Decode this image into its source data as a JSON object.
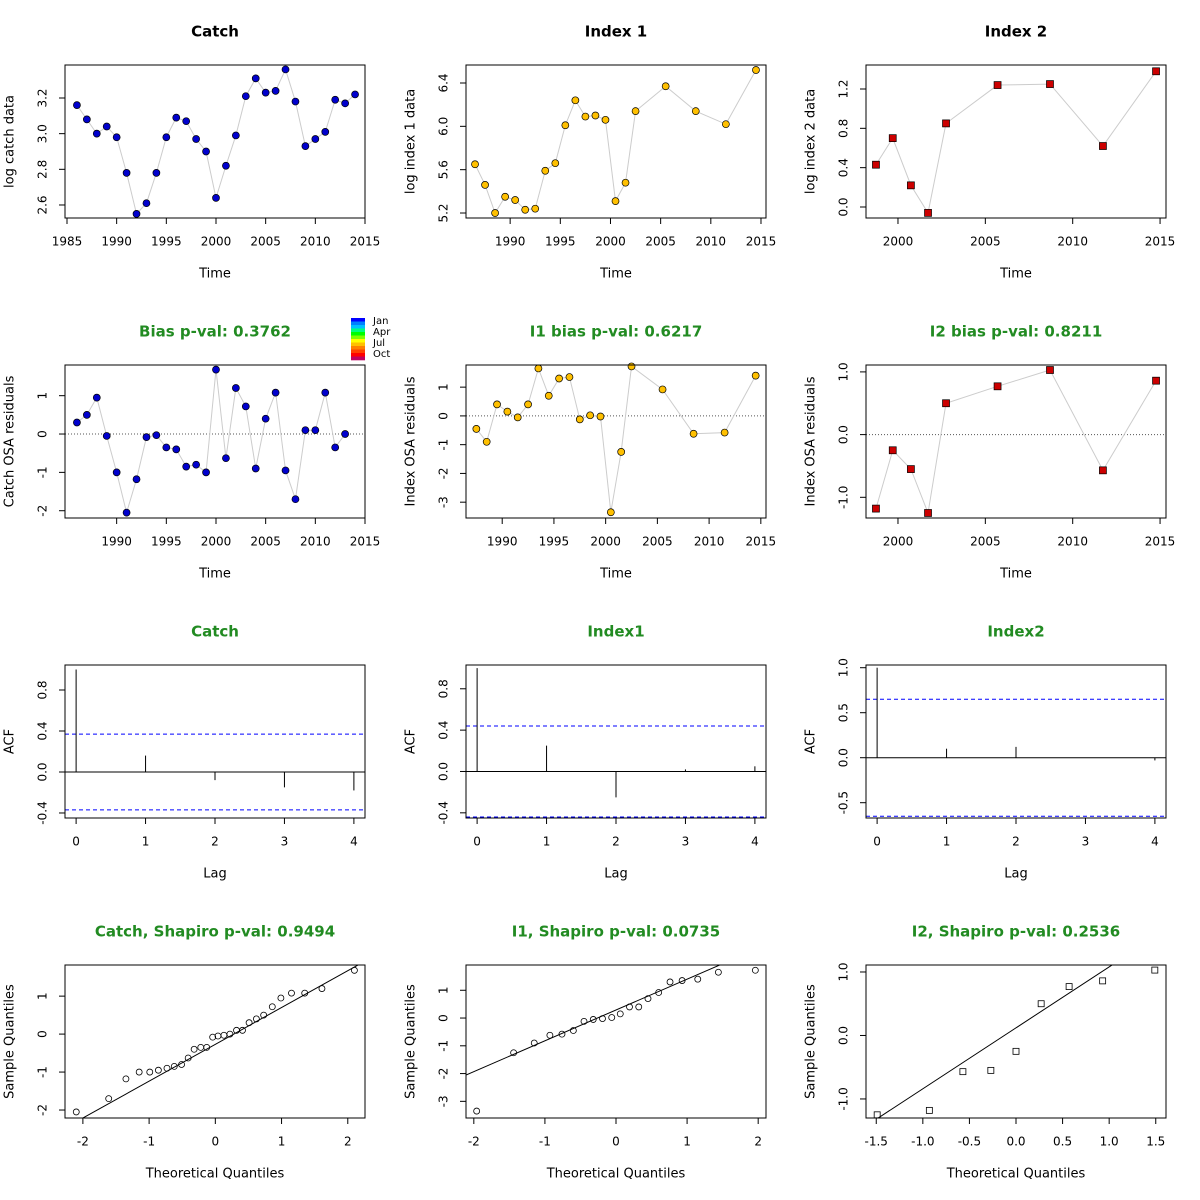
{
  "chart_data": [
    {
      "type": "line",
      "title": "Catch",
      "title_color": "#000000",
      "xlabel": "Time",
      "ylabel": "log catch data",
      "x": [
        1986,
        1987,
        1988,
        1989,
        1990,
        1991,
        1992,
        1993,
        1994,
        1995,
        1996,
        1997,
        1998,
        1999,
        2000,
        2001,
        2002,
        2003,
        2004,
        2005,
        2006,
        2007,
        2008,
        2009,
        2010,
        2011,
        2012,
        2013,
        2014
      ],
      "values": [
        3.16,
        3.08,
        3.0,
        3.04,
        2.98,
        2.78,
        2.55,
        2.61,
        2.78,
        2.98,
        3.09,
        3.07,
        2.97,
        2.9,
        2.64,
        2.82,
        2.99,
        3.21,
        3.31,
        3.23,
        3.24,
        3.36,
        3.18,
        2.93,
        2.97,
        3.01,
        3.19,
        3.17,
        3.22
      ],
      "color": "#0000cd",
      "marker": "circle",
      "xlim": [
        1984.8,
        2015.0
      ],
      "ylim": [
        2.527,
        3.385
      ],
      "xticks": [
        1985,
        1990,
        1995,
        2000,
        2005,
        2010,
        2015
      ],
      "yticks": [
        2.6,
        2.8,
        {
          "value": 3,
          "label": "3.0"
        },
        3.2
      ]
    },
    {
      "type": "line",
      "title": "Index 1",
      "title_color": "#000000",
      "xlabel": "Time",
      "ylabel": "log index 1 data",
      "x": [
        1986.5,
        1987.5,
        1988.5,
        1989.5,
        1990.5,
        1991.5,
        1992.5,
        1993.5,
        1994.5,
        1995.5,
        1996.5,
        1997.5,
        1998.5,
        1999.5,
        2000.5,
        2001.5,
        2002.5,
        2005.5,
        2008.5,
        2011.5,
        2014.5
      ],
      "values": [
        5.65,
        5.46,
        5.2,
        5.35,
        5.32,
        5.23,
        5.24,
        5.59,
        5.66,
        6.01,
        6.24,
        6.09,
        6.1,
        6.06,
        5.31,
        5.48,
        6.14,
        6.37,
        6.14,
        6.02,
        6.52
      ],
      "color": "#ffc000",
      "marker": "circle",
      "xlim": [
        1985.6,
        2015.5
      ],
      "ylim": [
        5.154,
        6.566
      ],
      "xticks": [
        1990,
        1995,
        2000,
        2005,
        2010,
        2015
      ],
      "yticks": [
        5.2,
        5.6,
        {
          "value": 6,
          "label": "6.0"
        },
        6.4
      ]
    },
    {
      "type": "line",
      "title": "Index 2",
      "title_color": "#000000",
      "xlabel": "Time",
      "ylabel": "log index 2 data",
      "x": [
        1998.74,
        1999.7,
        2000.74,
        2001.72,
        2002.75,
        2005.7,
        2008.7,
        2011.73,
        2014.77
      ],
      "values": [
        0.43,
        0.7,
        0.22,
        -0.06,
        0.85,
        1.24,
        1.25,
        0.62,
        1.38
      ],
      "color": "#cc0000",
      "marker": "square",
      "xlim": [
        1998.17,
        2015.34
      ],
      "ylim": [
        -0.112,
        1.444
      ],
      "xticks": [
        2000,
        2005,
        2010,
        2015
      ],
      "yticks": [
        {
          "value": 0,
          "label": "0.0"
        },
        0.4,
        0.8,
        1.2
      ]
    },
    {
      "type": "line",
      "title": "Bias p-val: 0.3762",
      "title_color": "#228b22",
      "xlabel": "Time",
      "ylabel": "Catch OSA residuals",
      "x": [
        1986,
        1987,
        1988,
        1989,
        1990,
        1991,
        1992,
        1993,
        1994,
        1995,
        1996,
        1997,
        1998,
        1999,
        2000,
        2001,
        2002,
        2003,
        2004,
        2005,
        2006,
        2007,
        2008,
        2009,
        2010,
        2011,
        2012,
        2013
      ],
      "values": [
        0.3,
        0.5,
        0.95,
        -0.05,
        -1.0,
        -2.05,
        -1.18,
        -0.08,
        -0.03,
        -0.35,
        -0.4,
        -0.85,
        -0.8,
        -1.0,
        1.68,
        -0.63,
        1.2,
        0.72,
        -0.9,
        0.4,
        1.08,
        -0.95,
        -1.7,
        0.1,
        0.1,
        1.08,
        -0.35,
        0.0
      ],
      "color": "#0000cd",
      "marker": "circle",
      "zero_line": true,
      "xlim": [
        1984.8,
        2015.0
      ],
      "ylim": [
        -2.19,
        1.8
      ],
      "xticks": [
        1990,
        1995,
        2000,
        2005,
        2010,
        2015
      ],
      "yticks": [
        -2,
        -1,
        0,
        1
      ],
      "colorbar": {
        "labels": [
          "Jan",
          "Apr",
          "Jul",
          "Oct"
        ],
        "colors": [
          "#0000ff",
          "#0080ff",
          "#00c0ff",
          "#00ff80",
          "#00ff00",
          "#80ff00",
          "#ffff00",
          "#ffc000",
          "#ff8000",
          "#ff4000",
          "#ff0000",
          "#c00060"
        ]
      }
    },
    {
      "type": "line",
      "title": "I1 bias p-val: 0.6217",
      "title_color": "#228b22",
      "xlabel": "Time",
      "ylabel": "Index OSA residuals",
      "x": [
        1987.5,
        1988.5,
        1989.5,
        1990.5,
        1991.5,
        1992.5,
        1993.5,
        1994.5,
        1995.5,
        1996.5,
        1997.5,
        1998.5,
        1999.5,
        2000.5,
        2001.5,
        2002.5,
        2005.5,
        2008.5,
        2011.5,
        2014.5
      ],
      "values": [
        -0.45,
        -0.9,
        0.4,
        0.15,
        -0.05,
        0.4,
        1.65,
        0.7,
        1.3,
        1.35,
        -0.12,
        0.02,
        -0.02,
        -3.35,
        -1.25,
        1.72,
        0.92,
        -0.62,
        -0.58,
        1.4
      ],
      "color": "#ffc000",
      "marker": "circle",
      "zero_line": true,
      "xlim": [
        1986.5,
        2015.5
      ],
      "ylim": [
        -3.55,
        1.77
      ],
      "xticks": [
        1990,
        1995,
        2000,
        2005,
        2010,
        2015
      ],
      "yticks": [
        -3,
        -2,
        -1,
        0,
        1
      ]
    },
    {
      "type": "line",
      "title": "I2 bias p-val: 0.8211",
      "title_color": "#228b22",
      "xlabel": "Time",
      "ylabel": "Index OSA residuals",
      "x": [
        1998.74,
        1999.7,
        2000.74,
        2001.72,
        2002.75,
        2005.7,
        2008.7,
        2011.73,
        2014.77
      ],
      "values": [
        -1.18,
        -0.25,
        -0.55,
        -1.25,
        0.5,
        0.77,
        1.03,
        -0.57,
        0.86
      ],
      "color": "#cc0000",
      "marker": "square",
      "zero_line": true,
      "xlim": [
        1998.17,
        2015.34
      ],
      "ylim": [
        -1.33,
        1.11
      ],
      "xticks": [
        2000,
        2005,
        2010,
        2015
      ],
      "yticks": [
        {
          "value": -1,
          "label": "-1.0"
        },
        {
          "value": 0,
          "label": "0.0"
        },
        {
          "value": 1,
          "label": "1.0"
        }
      ]
    },
    {
      "type": "bar",
      "title": "Catch",
      "title_color": "#228b22",
      "xlabel": "Lag",
      "ylabel": "ACF",
      "x": [
        0,
        1,
        2,
        3,
        4
      ],
      "values": [
        1.0,
        0.16,
        -0.08,
        -0.15,
        -0.18
      ],
      "ci": 0.37,
      "ci_color": "#0000ff",
      "xlim": [
        -0.16,
        4.16
      ],
      "ylim": [
        -0.449,
        1.044
      ],
      "xticks": [
        0,
        1,
        2,
        3,
        4
      ],
      "yticks": [
        -0.4,
        {
          "value": 0,
          "label": "0.0"
        },
        0.4,
        0.8
      ]
    },
    {
      "type": "bar",
      "title": "Index1",
      "title_color": "#228b22",
      "xlabel": "Lag",
      "ylabel": "ACF",
      "x": [
        0,
        1,
        2,
        3,
        4
      ],
      "values": [
        1.0,
        0.25,
        -0.25,
        0.02,
        0.05
      ],
      "ci": 0.44,
      "ci_color": "#0000ff",
      "xlim": [
        -0.16,
        4.16
      ],
      "ylim": [
        -0.45,
        1.03
      ],
      "xticks": [
        0,
        1,
        2,
        3,
        4
      ],
      "yticks": [
        -0.4,
        {
          "value": 0,
          "label": "0.0"
        },
        0.4,
        0.8
      ]
    },
    {
      "type": "bar",
      "title": "Index2",
      "title_color": "#228b22",
      "xlabel": "Lag",
      "ylabel": "ACF",
      "x": [
        0,
        1,
        2,
        3,
        4
      ],
      "values": [
        1.0,
        0.1,
        0.12,
        0.0,
        -0.03
      ],
      "ci": 0.65,
      "ci_color": "#0000ff",
      "xlim": [
        -0.16,
        4.16
      ],
      "ylim": [
        -0.67,
        1.03
      ],
      "xticks": [
        0,
        1,
        2,
        3,
        4
      ],
      "yticks": [
        -0.5,
        {
          "value": 0,
          "label": "0.0"
        },
        0.5,
        {
          "value": 1,
          "label": "1.0"
        }
      ]
    },
    {
      "type": "scatter",
      "title": "Catch, Shapiro p-val: 0.9494",
      "title_color": "#228b22",
      "xlabel": "Theoretical Quantiles",
      "ylabel": "Sample Quantiles",
      "x": [
        -2.1,
        -1.61,
        -1.35,
        -1.15,
        -0.99,
        -0.86,
        -0.73,
        -0.62,
        -0.51,
        -0.41,
        -0.32,
        -0.22,
        -0.13,
        -0.04,
        0.04,
        0.13,
        0.22,
        0.32,
        0.41,
        0.51,
        0.62,
        0.73,
        0.86,
        0.99,
        1.15,
        1.35,
        1.61,
        2.1
      ],
      "values": [
        -2.05,
        -1.7,
        -1.18,
        -1.0,
        -1.0,
        -0.95,
        -0.9,
        -0.85,
        -0.8,
        -0.63,
        -0.4,
        -0.35,
        -0.35,
        -0.08,
        -0.05,
        -0.03,
        0.0,
        0.1,
        0.1,
        0.3,
        0.4,
        0.5,
        0.72,
        0.95,
        1.08,
        1.08,
        1.2,
        1.68
      ],
      "marker": "circle",
      "line": {
        "intercept": -0.27,
        "slope": 0.97
      },
      "xlim": [
        -2.27,
        2.26
      ],
      "ylim": [
        -2.21,
        1.82
      ],
      "xticks": [
        -2,
        -1,
        0,
        1,
        2
      ],
      "yticks": [
        -2,
        -1,
        0,
        1
      ]
    },
    {
      "type": "scatter",
      "title": "I1, Shapiro p-val: 0.0735",
      "title_color": "#228b22",
      "xlabel": "Theoretical Quantiles",
      "ylabel": "Sample Quantiles",
      "x": [
        -1.96,
        -1.44,
        -1.15,
        -0.93,
        -0.76,
        -0.6,
        -0.45,
        -0.32,
        -0.19,
        -0.06,
        0.06,
        0.19,
        0.32,
        0.45,
        0.6,
        0.76,
        0.93,
        1.15,
        1.44,
        1.96
      ],
      "values": [
        -3.35,
        -1.25,
        -0.9,
        -0.62,
        -0.58,
        -0.45,
        -0.12,
        -0.05,
        -0.02,
        0.02,
        0.15,
        0.4,
        0.4,
        0.7,
        0.92,
        1.3,
        1.35,
        1.4,
        1.65,
        1.72
      ],
      "marker": "circle",
      "line": {
        "intercept": 0.29,
        "slope": 1.11
      },
      "xlim": [
        -2.11,
        2.11
      ],
      "ylim": [
        -3.6,
        1.91
      ],
      "xticks": [
        -2,
        -1,
        0,
        1,
        2
      ],
      "yticks": [
        -3,
        -2,
        -1,
        0,
        1
      ]
    },
    {
      "type": "scatter",
      "title": "I2, Shapiro p-val: 0.2536",
      "title_color": "#228b22",
      "xlabel": "Theoretical Quantiles",
      "ylabel": "Sample Quantiles",
      "x": [
        -1.49,
        -0.93,
        -0.57,
        -0.27,
        0,
        0.27,
        0.57,
        0.93,
        1.49
      ],
      "values": [
        -1.25,
        -1.18,
        -0.57,
        -0.55,
        -0.25,
        0.5,
        0.77,
        0.86,
        1.03
      ],
      "marker": "square",
      "line": {
        "intercept": 0.12,
        "slope": 0.96
      },
      "xlim": [
        -1.61,
        1.61
      ],
      "ylim": [
        -1.3,
        1.11
      ],
      "xticks": [
        -1.5,
        {
          "value": -1,
          "label": "-1.0"
        },
        -0.5,
        {
          "value": 0,
          "label": "0.0"
        },
        0.5,
        {
          "value": 1,
          "label": "1.0"
        },
        1.5
      ],
      "yticks": [
        {
          "value": -1,
          "label": "-1.0"
        },
        {
          "value": 0,
          "label": "0.0"
        },
        {
          "value": 1,
          "label": "1.0"
        }
      ]
    }
  ]
}
